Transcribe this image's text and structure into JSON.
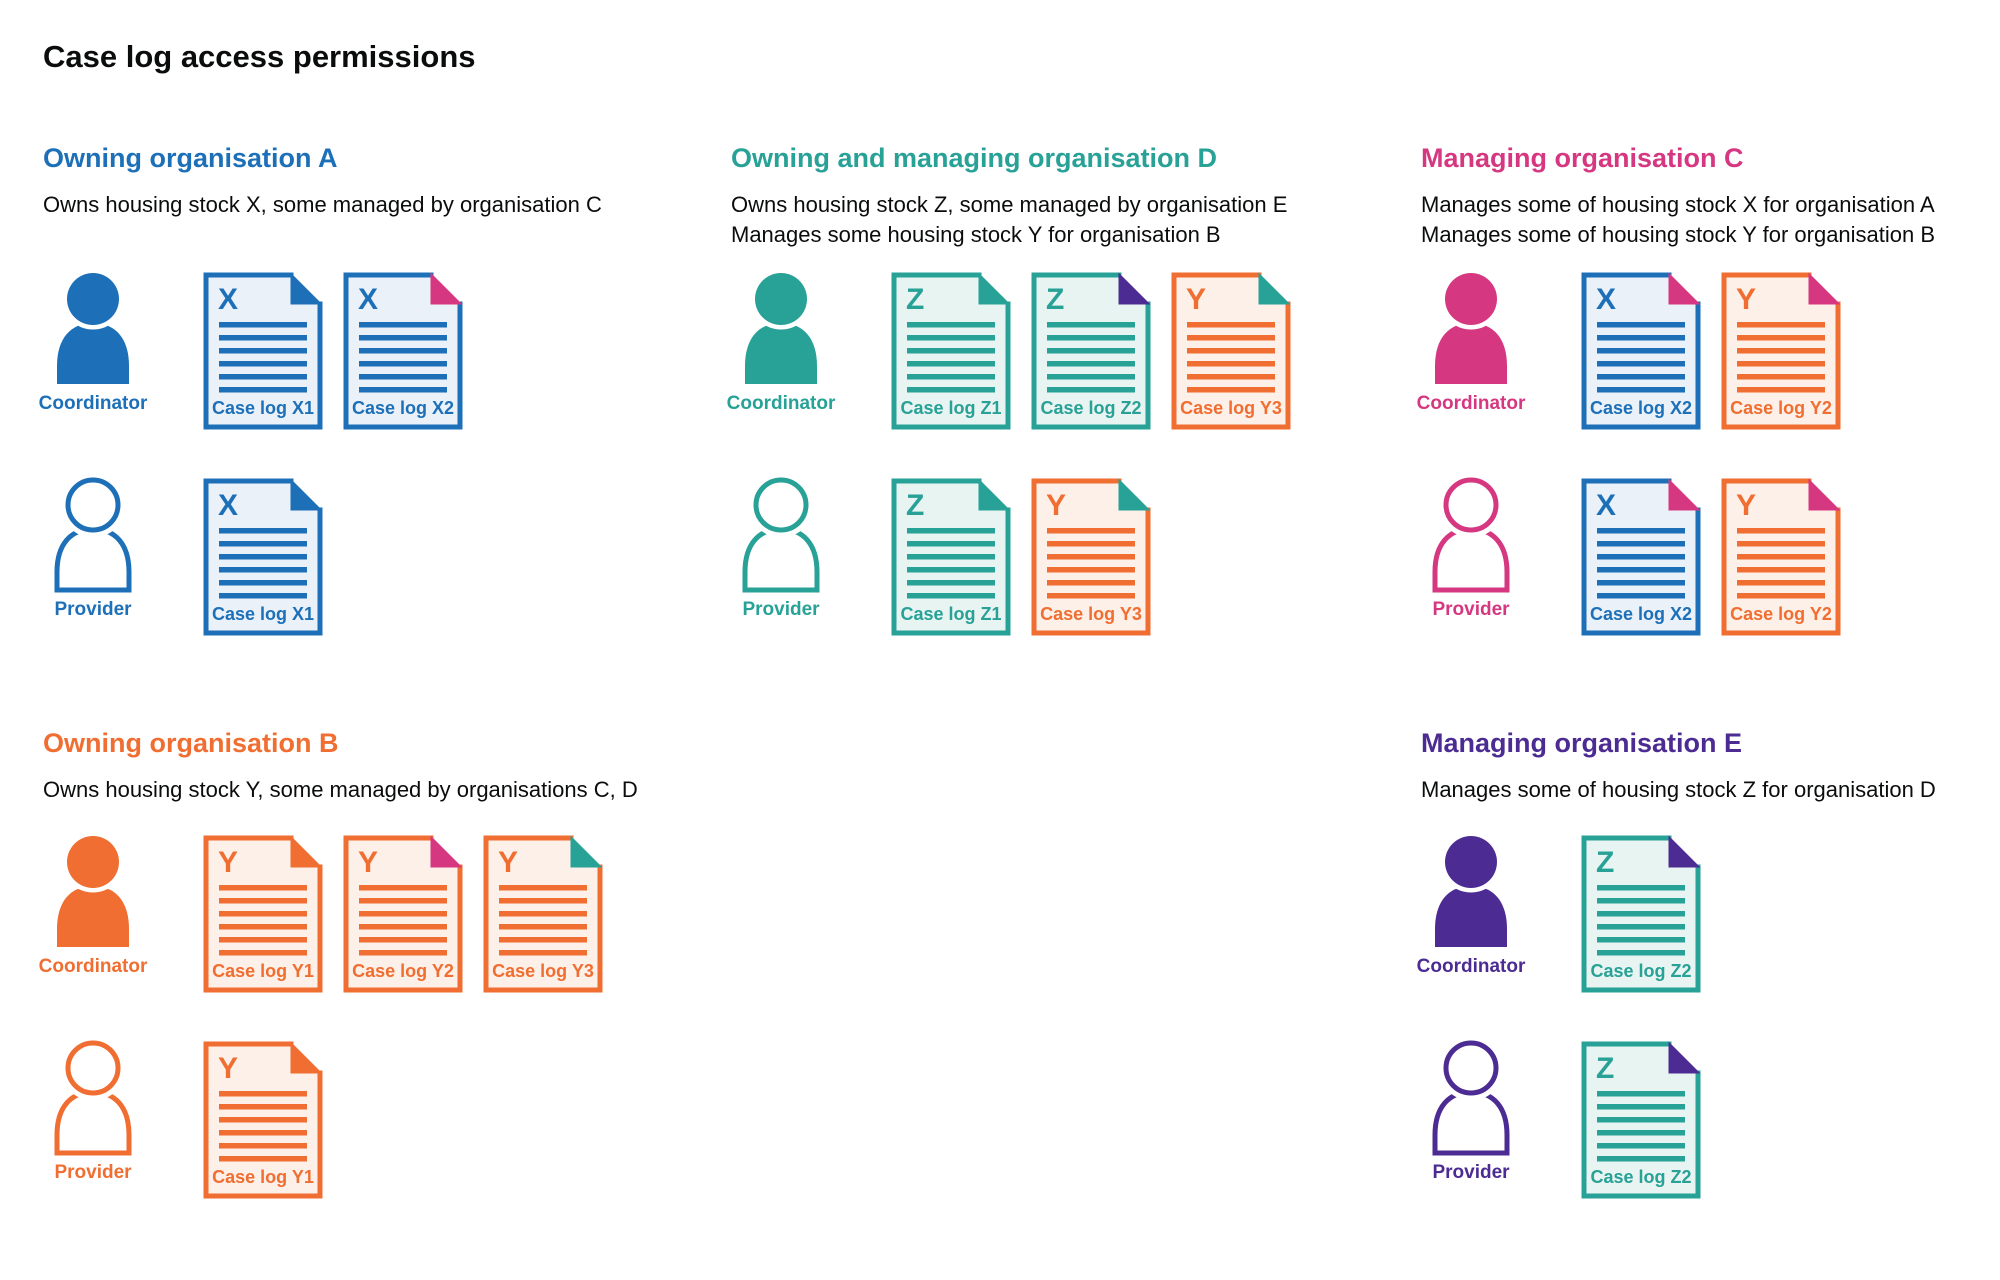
{
  "title": "Case log access permissions",
  "colors": {
    "text": "#0b0c0c",
    "background": "#ffffff",
    "blue": {
      "main": "#1d70b8",
      "tint": "#eaf1f8"
    },
    "teal": {
      "main": "#28a197",
      "tint": "#e8f4f1"
    },
    "orange": {
      "main": "#f06e31",
      "tint": "#fdf0e8"
    },
    "pink": {
      "main": "#d53880",
      "tint": "#fbecf3"
    },
    "purple": {
      "main": "#4c2c92",
      "tint": "#ece8f4"
    }
  },
  "organisations": [
    {
      "id": "a",
      "color": "blue",
      "heading": "Owning organisation A",
      "description": [
        "Owns housing stock X, some managed by organisation C"
      ],
      "roles": [
        {
          "label": "Coordinator",
          "variant": "filled",
          "documents": [
            {
              "letter": "X",
              "label": "Case log X1",
              "doc_color": "blue",
              "fold_color": "blue"
            },
            {
              "letter": "X",
              "label": "Case log X2",
              "doc_color": "blue",
              "fold_color": "pink"
            }
          ]
        },
        {
          "label": "Provider",
          "variant": "outline",
          "documents": [
            {
              "letter": "X",
              "label": "Case log X1",
              "doc_color": "blue",
              "fold_color": "blue"
            }
          ]
        }
      ]
    },
    {
      "id": "d",
      "color": "teal",
      "heading": "Owning and managing organisation D",
      "description": [
        "Owns housing stock Z, some managed by organisation E",
        "Manages some housing stock Y for organisation B"
      ],
      "roles": [
        {
          "label": "Coordinator",
          "variant": "filled",
          "documents": [
            {
              "letter": "Z",
              "label": "Case log Z1",
              "doc_color": "teal",
              "fold_color": "teal"
            },
            {
              "letter": "Z",
              "label": "Case log Z2",
              "doc_color": "teal",
              "fold_color": "purple"
            },
            {
              "letter": "Y",
              "label": "Case log Y3",
              "doc_color": "orange",
              "fold_color": "teal"
            }
          ]
        },
        {
          "label": "Provider",
          "variant": "outline",
          "documents": [
            {
              "letter": "Z",
              "label": "Case log Z1",
              "doc_color": "teal",
              "fold_color": "teal"
            },
            {
              "letter": "Y",
              "label": "Case log Y3",
              "doc_color": "orange",
              "fold_color": "teal"
            }
          ]
        }
      ]
    },
    {
      "id": "c",
      "color": "pink",
      "heading": "Managing organisation C",
      "description": [
        "Manages some of housing stock X for organisation A",
        "Manages some of housing stock Y for organisation B"
      ],
      "roles": [
        {
          "label": "Coordinator",
          "variant": "filled",
          "documents": [
            {
              "letter": "X",
              "label": "Case log X2",
              "doc_color": "blue",
              "fold_color": "pink"
            },
            {
              "letter": "Y",
              "label": "Case log Y2",
              "doc_color": "orange",
              "fold_color": "pink"
            }
          ]
        },
        {
          "label": "Provider",
          "variant": "outline",
          "documents": [
            {
              "letter": "X",
              "label": "Case log X2",
              "doc_color": "blue",
              "fold_color": "pink"
            },
            {
              "letter": "Y",
              "label": "Case log Y2",
              "doc_color": "orange",
              "fold_color": "pink"
            }
          ]
        }
      ]
    },
    {
      "id": "b",
      "color": "orange",
      "heading": "Owning organisation B",
      "description": [
        "Owns housing stock Y, some managed by organisations C, D"
      ],
      "roles": [
        {
          "label": "Coordinator",
          "variant": "filled",
          "documents": [
            {
              "letter": "Y",
              "label": "Case log Y1",
              "doc_color": "orange",
              "fold_color": "orange"
            },
            {
              "letter": "Y",
              "label": "Case log Y2",
              "doc_color": "orange",
              "fold_color": "pink"
            },
            {
              "letter": "Y",
              "label": "Case log Y3",
              "doc_color": "orange",
              "fold_color": "teal"
            }
          ]
        },
        {
          "label": "Provider",
          "variant": "outline",
          "documents": [
            {
              "letter": "Y",
              "label": "Case log Y1",
              "doc_color": "orange",
              "fold_color": "orange"
            }
          ]
        }
      ]
    },
    {
      "id": "e",
      "color": "purple",
      "heading": "Managing organisation E",
      "description": [
        "Manages some of housing stock Z for organisation D"
      ],
      "roles": [
        {
          "label": "Coordinator",
          "variant": "filled",
          "documents": [
            {
              "letter": "Z",
              "label": "Case log Z2",
              "doc_color": "teal",
              "fold_color": "purple"
            }
          ]
        },
        {
          "label": "Provider",
          "variant": "outline",
          "documents": [
            {
              "letter": "Z",
              "label": "Case log Z2",
              "doc_color": "teal",
              "fold_color": "purple"
            }
          ]
        }
      ]
    }
  ]
}
